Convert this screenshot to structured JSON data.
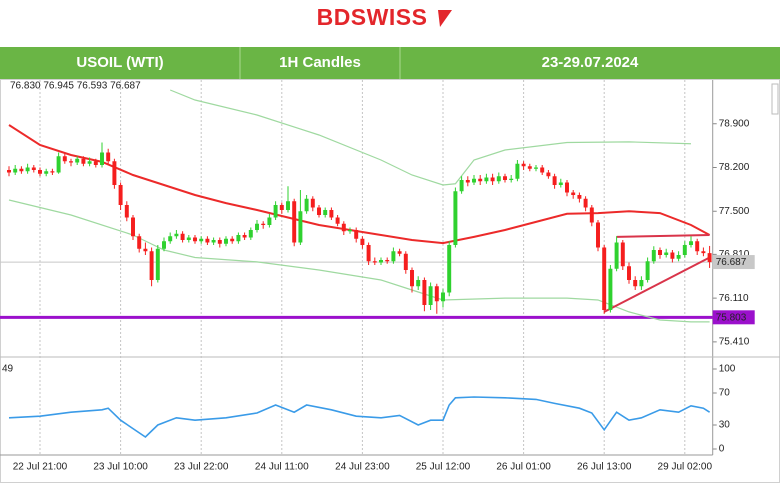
{
  "header": {
    "logo": "BDSWISS",
    "cells": [
      "USOIL (WTI)",
      "1H Candles",
      "23-29.07.2024"
    ]
  },
  "chart_data": [
    {
      "type": "candlestick",
      "ohlc_text": "76.830 76.945 76.593 76.687",
      "categories": [
        null,
        null,
        null,
        null,
        null,
        "22 Jul 21:00",
        null,
        null,
        null,
        null,
        null,
        null,
        null,
        null,
        null,
        null,
        null,
        null,
        "23 Jul 10:00",
        null,
        null,
        null,
        null,
        null,
        null,
        null,
        null,
        null,
        null,
        null,
        null,
        "23 Jul 22:00",
        null,
        null,
        null,
        null,
        null,
        null,
        null,
        null,
        null,
        null,
        null,
        null,
        "24 Jul 11:00",
        null,
        null,
        null,
        null,
        null,
        null,
        null,
        null,
        null,
        null,
        null,
        null,
        "24 Jul 23:00",
        null,
        null,
        null,
        null,
        null,
        null,
        null,
        null,
        null,
        null,
        null,
        null,
        "25 Jul 12:00",
        null,
        null,
        null,
        null,
        null,
        null,
        null,
        null,
        null,
        null,
        null,
        null,
        "26 Jul 01:00",
        null,
        null,
        null,
        null,
        null,
        null,
        null,
        null,
        null,
        null,
        null,
        null,
        "26 Jul 13:00",
        null,
        null,
        null,
        null,
        null,
        null,
        null,
        null,
        null,
        null,
        null,
        null,
        "29 Jul 02:00",
        null,
        null,
        null,
        null
      ],
      "open": [
        78.16,
        78.12,
        78.18,
        78.14,
        78.2,
        78.16,
        78.1,
        78.14,
        78.12,
        78.38,
        78.3,
        78.28,
        78.34,
        78.26,
        78.3,
        78.24,
        78.44,
        78.3,
        77.92,
        77.6,
        77.4,
        77.1,
        76.9,
        76.86,
        76.4,
        76.9,
        77.02,
        77.1,
        77.14,
        77.04,
        77.08,
        77.02,
        77.06,
        77.0,
        77.04,
        76.98,
        77.06,
        77.02,
        77.12,
        77.08,
        77.2,
        77.3,
        77.28,
        77.4,
        77.6,
        77.52,
        77.66,
        77.0,
        77.5,
        77.7,
        77.56,
        77.44,
        77.52,
        77.4,
        77.3,
        77.18,
        77.2,
        77.06,
        76.96,
        76.7,
        76.68,
        76.72,
        76.7,
        76.86,
        76.82,
        76.56,
        76.3,
        76.4,
        76.0,
        76.3,
        76.06,
        76.2,
        76.96,
        77.82,
        78.0,
        77.96,
        78.02,
        77.98,
        78.04,
        77.98,
        78.06,
        78.0,
        78.02,
        78.26,
        78.22,
        78.18,
        78.2,
        78.12,
        78.06,
        77.92,
        77.96,
        77.8,
        77.76,
        77.7,
        77.56,
        77.32,
        76.92,
        75.92,
        76.58,
        77.0,
        76.62,
        76.4,
        76.3,
        76.4,
        76.7,
        76.88,
        76.8,
        76.84,
        76.74,
        76.8,
        76.96,
        77.02,
        76.86,
        76.83
      ],
      "high": [
        78.22,
        78.24,
        78.22,
        78.26,
        78.24,
        78.2,
        78.18,
        78.18,
        78.44,
        78.42,
        78.34,
        78.38,
        78.38,
        78.36,
        78.34,
        78.6,
        78.5,
        78.34,
        77.96,
        77.66,
        77.44,
        77.14,
        77.0,
        76.92,
        76.96,
        77.08,
        77.16,
        77.2,
        77.18,
        77.12,
        77.12,
        77.1,
        77.1,
        77.08,
        77.08,
        77.1,
        77.1,
        77.16,
        77.16,
        77.24,
        77.36,
        77.34,
        77.46,
        77.66,
        77.64,
        77.9,
        77.7,
        77.84,
        77.76,
        77.74,
        77.6,
        77.56,
        77.56,
        77.44,
        77.34,
        77.24,
        77.24,
        77.1,
        77.0,
        76.76,
        76.76,
        76.76,
        76.92,
        76.9,
        76.86,
        76.6,
        76.46,
        76.44,
        76.36,
        76.34,
        76.26,
        77.02,
        77.88,
        78.06,
        78.06,
        78.08,
        78.08,
        78.1,
        78.1,
        78.12,
        78.1,
        78.08,
        78.32,
        78.3,
        78.26,
        78.24,
        78.24,
        78.16,
        78.1,
        78.02,
        78.0,
        77.84,
        77.8,
        77.74,
        77.6,
        77.36,
        76.96,
        76.64,
        77.1,
        77.04,
        76.68,
        76.46,
        76.46,
        76.76,
        76.94,
        76.92,
        76.9,
        76.88,
        76.86,
        77.02,
        77.1,
        77.06,
        76.92,
        76.945
      ],
      "low": [
        78.06,
        78.08,
        78.1,
        78.1,
        78.12,
        78.06,
        78.06,
        78.08,
        78.1,
        78.26,
        78.22,
        78.24,
        78.22,
        78.22,
        78.2,
        78.2,
        78.26,
        77.86,
        77.52,
        77.34,
        77.04,
        76.84,
        76.8,
        76.3,
        76.36,
        76.86,
        76.98,
        77.06,
        77.0,
        77.0,
        76.98,
        76.98,
        76.96,
        76.96,
        76.92,
        76.94,
        76.98,
        76.98,
        77.04,
        77.04,
        77.16,
        77.22,
        77.24,
        77.36,
        77.46,
        77.48,
        76.94,
        76.96,
        77.46,
        77.5,
        77.4,
        77.4,
        77.36,
        77.26,
        77.12,
        77.14,
        77.0,
        76.9,
        76.64,
        76.64,
        76.64,
        76.66,
        76.66,
        76.78,
        76.5,
        76.2,
        76.24,
        75.9,
        75.92,
        75.86,
        75.96,
        76.14,
        76.92,
        77.78,
        77.9,
        77.92,
        77.92,
        77.94,
        77.92,
        77.94,
        77.96,
        77.96,
        77.98,
        78.16,
        78.14,
        78.14,
        78.08,
        78.02,
        77.86,
        77.88,
        77.74,
        77.7,
        77.64,
        77.5,
        77.26,
        76.86,
        75.86,
        75.88,
        76.54,
        76.56,
        76.34,
        76.24,
        76.24,
        76.36,
        76.66,
        76.74,
        76.76,
        76.68,
        76.7,
        76.76,
        76.92,
        76.8,
        76.78,
        76.593
      ],
      "close": [
        78.12,
        78.18,
        78.14,
        78.2,
        78.16,
        78.1,
        78.14,
        78.12,
        78.38,
        78.3,
        78.28,
        78.34,
        78.26,
        78.3,
        78.24,
        78.44,
        78.3,
        77.92,
        77.6,
        77.4,
        77.1,
        76.9,
        76.86,
        76.4,
        76.9,
        77.02,
        77.1,
        77.14,
        77.04,
        77.08,
        77.02,
        77.06,
        77.0,
        77.04,
        76.98,
        77.06,
        77.02,
        77.12,
        77.08,
        77.2,
        77.3,
        77.28,
        77.4,
        77.6,
        77.52,
        77.66,
        77.0,
        77.5,
        77.7,
        77.56,
        77.44,
        77.52,
        77.4,
        77.3,
        77.18,
        77.2,
        77.06,
        76.96,
        76.7,
        76.68,
        76.72,
        76.7,
        76.86,
        76.82,
        76.56,
        76.3,
        76.4,
        76.0,
        76.3,
        76.06,
        76.2,
        76.96,
        77.82,
        78.0,
        77.96,
        78.02,
        77.98,
        78.04,
        77.98,
        78.06,
        78.0,
        78.02,
        78.26,
        78.22,
        78.18,
        78.2,
        78.12,
        78.06,
        77.92,
        77.96,
        77.8,
        77.76,
        77.7,
        77.56,
        77.32,
        76.92,
        75.92,
        76.58,
        77.0,
        76.62,
        76.4,
        76.3,
        76.4,
        76.7,
        76.88,
        76.8,
        76.84,
        76.74,
        76.8,
        76.96,
        77.02,
        76.86,
        76.83,
        76.687
      ],
      "up_color": "#2fd12f",
      "down_color": "#f51e1e",
      "ylim": [
        75.2,
        79.6
      ],
      "yticks": [
        {
          "value": 78.9,
          "label": "78.900"
        },
        {
          "value": 78.2,
          "label": "78.200"
        },
        {
          "value": 77.5,
          "label": "77.500"
        },
        {
          "value": 76.81,
          "label": "76.810"
        },
        {
          "value": 76.11,
          "label": "76.110"
        },
        {
          "value": 75.41,
          "label": "75.410"
        }
      ],
      "grid": true,
      "price_tags": [
        {
          "value": 76.687,
          "color": "#c8c8c8"
        },
        {
          "value": 75.803,
          "color": "#9b10cc"
        }
      ],
      "overlays": [
        {
          "color": "#ec2a2a",
          "x": [
            0,
            5,
            10,
            15,
            20,
            25,
            30,
            35,
            40,
            45,
            50,
            55,
            60,
            65,
            70,
            75,
            80,
            85,
            90,
            95,
            100,
            105,
            110,
            113
          ],
          "values": [
            78.88,
            78.56,
            78.4,
            78.29,
            78.08,
            77.92,
            77.76,
            77.63,
            77.52,
            77.4,
            77.28,
            77.2,
            77.12,
            77.04,
            76.99,
            77.09,
            77.2,
            77.33,
            77.46,
            77.47,
            77.5,
            77.47,
            77.28,
            77.12
          ]
        },
        {
          "color": "#9fd9a0",
          "x": [
            26,
            30,
            40,
            50,
            60,
            65,
            70,
            72,
            75,
            80,
            90,
            100,
            110
          ],
          "values": [
            79.44,
            79.28,
            79.04,
            78.72,
            78.32,
            78.08,
            77.92,
            77.94,
            78.32,
            78.48,
            78.6,
            78.61,
            78.58
          ]
        },
        {
          "color": "#9fd9a0",
          "x": [
            0,
            10,
            20,
            25,
            30,
            40,
            50,
            60,
            65,
            70,
            80,
            90,
            95,
            100,
            105,
            110,
            113
          ],
          "values": [
            77.68,
            77.44,
            77.12,
            76.88,
            76.76,
            76.69,
            76.56,
            76.4,
            76.24,
            76.08,
            76.11,
            76.11,
            76.08,
            75.89,
            75.76,
            75.73,
            75.73
          ]
        },
        {
          "color": "#d9344a",
          "x": [
            96,
            113
          ],
          "values": [
            75.89,
            76.76
          ]
        },
        {
          "color": "#d9344a",
          "x": [
            98,
            113
          ],
          "values": [
            77.09,
            77.12
          ]
        }
      ]
    },
    {
      "type": "line",
      "label": "49",
      "color": "#3a9be8",
      "x": [
        0,
        5,
        10,
        15,
        16,
        18,
        22,
        24,
        27,
        30,
        35,
        40,
        43,
        46,
        48,
        52,
        56,
        60,
        63,
        66,
        68,
        70,
        71,
        72,
        75,
        80,
        85,
        88,
        92,
        94,
        96,
        98,
        100,
        102,
        105,
        108,
        110,
        112,
        113
      ],
      "values": [
        39,
        41,
        46,
        49,
        51,
        36,
        15,
        30,
        39,
        36,
        39,
        45,
        55,
        46,
        55,
        49,
        41,
        39,
        42,
        30,
        36,
        36,
        55,
        64,
        65,
        64,
        62,
        57,
        51,
        45,
        24,
        46,
        36,
        39,
        49,
        46,
        54,
        51,
        46
      ],
      "xlim": [
        -0.5,
        113.5
      ],
      "ylim": [
        -7.5,
        111.25
      ],
      "yticks": [
        100,
        70,
        30,
        0
      ]
    }
  ]
}
